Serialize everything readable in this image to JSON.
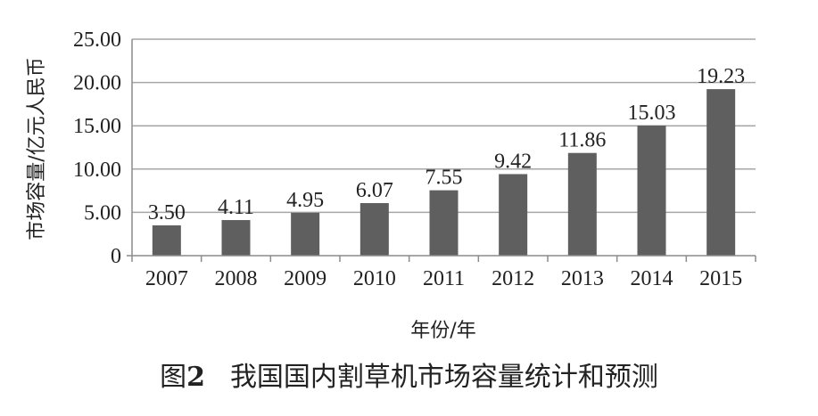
{
  "chart_data": {
    "type": "bar",
    "categories": [
      "2007",
      "2008",
      "2009",
      "2010",
      "2011",
      "2012",
      "2013",
      "2014",
      "2015"
    ],
    "values": [
      3.5,
      4.11,
      4.95,
      6.07,
      7.55,
      9.42,
      11.86,
      15.03,
      19.23
    ],
    "data_labels": [
      "3.50",
      "4.11",
      "4.95",
      "6.07",
      "7.55",
      "9.42",
      "11.86",
      "15.03",
      "19.23"
    ],
    "xlabel": "年份/年",
    "ylabel": "市场容量/亿元人民币",
    "ylim": [
      0,
      25
    ],
    "yticks": [
      "0",
      "5.00",
      "10.00",
      "15.00",
      "20.00",
      "25.00"
    ],
    "grid": true,
    "bar_color": "#5f5f5f",
    "grid_color": "#a6a6a6"
  },
  "caption": {
    "label": "图",
    "number": "2",
    "text": "我国国内割草机市场容量统计和预测"
  }
}
